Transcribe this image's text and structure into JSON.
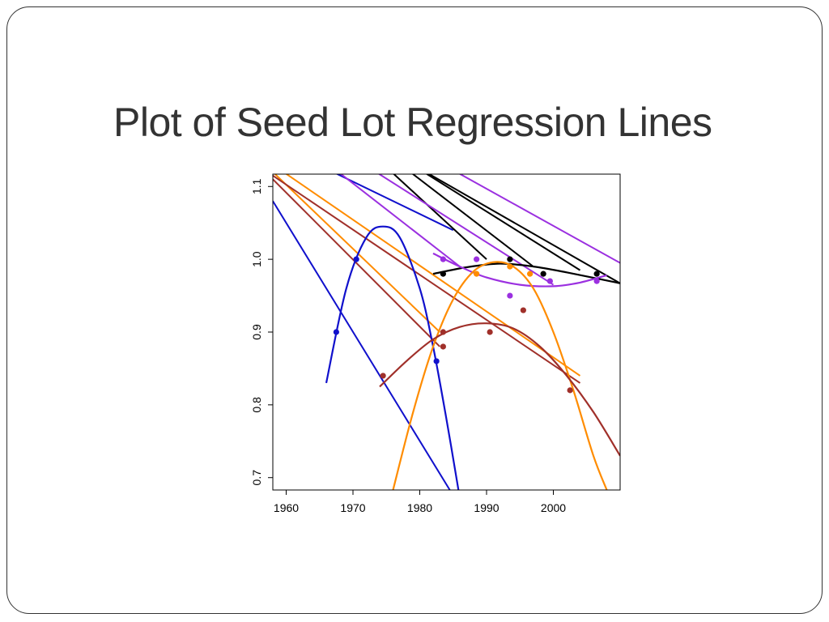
{
  "slide": {
    "title": "Plot of Seed Lot Regression Lines"
  },
  "chart_data": {
    "type": "scatter",
    "title": "",
    "xlabel": "",
    "ylabel": "",
    "xlim": [
      1958,
      2010
    ],
    "ylim": [
      0.683,
      1.117
    ],
    "grid": false,
    "xticks": [
      1960,
      1970,
      1980,
      1990,
      2000
    ],
    "yticks": [
      0.7,
      0.8,
      0.9,
      1.0,
      1.1
    ],
    "xtick_labels": [
      "1960",
      "1970",
      "1980",
      "1990",
      "2000"
    ],
    "ytick_labels": [
      "0.7",
      "0.8",
      "0.9",
      "1.0",
      "1.1"
    ],
    "series": [
      {
        "color": "#1010cc",
        "points": [
          [
            1967.5,
            0.9
          ],
          [
            1970.5,
            1.0
          ],
          [
            1982.5,
            0.86
          ]
        ],
        "curve": [
          [
            1966,
            0.83
          ],
          [
            1969,
            0.96
          ],
          [
            1972,
            1.03
          ],
          [
            1974.5,
            1.045
          ],
          [
            1977,
            1.03
          ],
          [
            1980,
            0.96
          ],
          [
            1982,
            0.88
          ],
          [
            1984,
            0.78
          ],
          [
            1985.8,
            0.683
          ]
        ],
        "lines": [
          [
            [
              1958,
              1.08
            ],
            [
              1984.5,
              0.683
            ]
          ],
          [
            [
              1958,
              1.16
            ],
            [
              1985,
              1.04
            ]
          ]
        ]
      },
      {
        "color": "#000000",
        "points": [
          [
            1983.5,
            0.98
          ],
          [
            1993.5,
            1.0
          ],
          [
            1998.5,
            0.98
          ],
          [
            2006.5,
            0.98
          ]
        ],
        "curve": [
          [
            1982,
            0.98
          ],
          [
            1987,
            0.989
          ],
          [
            1992,
            0.994
          ],
          [
            1997,
            0.99
          ],
          [
            2002,
            0.982
          ],
          [
            2010,
            0.967
          ]
        ],
        "lines": [
          [
            [
              1958,
              1.24
            ],
            [
              2010,
              0.967
            ]
          ],
          [
            [
              1958,
              1.25
            ],
            [
              2004,
              0.985
            ]
          ],
          [
            [
              1958,
              1.265
            ],
            [
              1997,
              0.99
            ]
          ],
          [
            [
              1958,
              1.27
            ],
            [
              1990,
              1.0
            ]
          ]
        ]
      },
      {
        "color": "#9b30e0",
        "points": [
          [
            1983.5,
            1.0
          ],
          [
            1988.5,
            1.0
          ],
          [
            1993.5,
            0.95
          ],
          [
            1999.5,
            0.97
          ],
          [
            2006.5,
            0.97
          ]
        ],
        "curve": [
          [
            1982,
            1.008
          ],
          [
            1986,
            0.99
          ],
          [
            1990,
            0.975
          ],
          [
            1995,
            0.965
          ],
          [
            2000,
            0.963
          ],
          [
            2004,
            0.968
          ],
          [
            2008,
            0.978
          ]
        ],
        "lines": [
          [
            [
              1958,
              1.26
            ],
            [
              2010,
              0.995
            ]
          ],
          [
            [
              1958,
              1.21
            ],
            [
              2000,
              0.965
            ]
          ],
          [
            [
              1958,
              1.19
            ],
            [
              1986,
              0.99
            ]
          ]
        ]
      },
      {
        "color": "#ff8c00",
        "points": [
          [
            1988.5,
            0.98
          ],
          [
            1993.5,
            0.99
          ],
          [
            1996.5,
            0.98
          ]
        ],
        "curve": [
          [
            1976,
            0.683
          ],
          [
            1979,
            0.79
          ],
          [
            1982,
            0.88
          ],
          [
            1985,
            0.945
          ],
          [
            1988,
            0.983
          ],
          [
            1991,
            0.996
          ],
          [
            1994,
            0.99
          ],
          [
            1997,
            0.96
          ],
          [
            2000,
            0.9
          ],
          [
            2003,
            0.82
          ],
          [
            2006,
            0.73
          ],
          [
            2008,
            0.683
          ]
        ],
        "lines": [
          [
            [
              1958,
              1.13
            ],
            [
              2004,
              0.84
            ]
          ],
          [
            [
              1958,
              1.12
            ],
            [
              1983,
              0.9
            ]
          ]
        ]
      },
      {
        "color": "#a0302a",
        "points": [
          [
            1974.5,
            0.84
          ],
          [
            1983.5,
            0.88
          ],
          [
            1983.5,
            0.9
          ],
          [
            1990.5,
            0.9
          ],
          [
            1995.5,
            0.93
          ],
          [
            2002.5,
            0.82
          ]
        ],
        "curve": [
          [
            1974,
            0.825
          ],
          [
            1978,
            0.86
          ],
          [
            1982,
            0.89
          ],
          [
            1986,
            0.907
          ],
          [
            1990,
            0.912
          ],
          [
            1994,
            0.905
          ],
          [
            1998,
            0.88
          ],
          [
            2002,
            0.84
          ],
          [
            2006,
            0.79
          ],
          [
            2010,
            0.73
          ]
        ],
        "lines": [
          [
            [
              1958,
              1.115
            ],
            [
              2004,
              0.83
            ]
          ],
          [
            [
              1958,
              1.11
            ],
            [
              1983,
              0.88
            ]
          ]
        ]
      }
    ]
  }
}
